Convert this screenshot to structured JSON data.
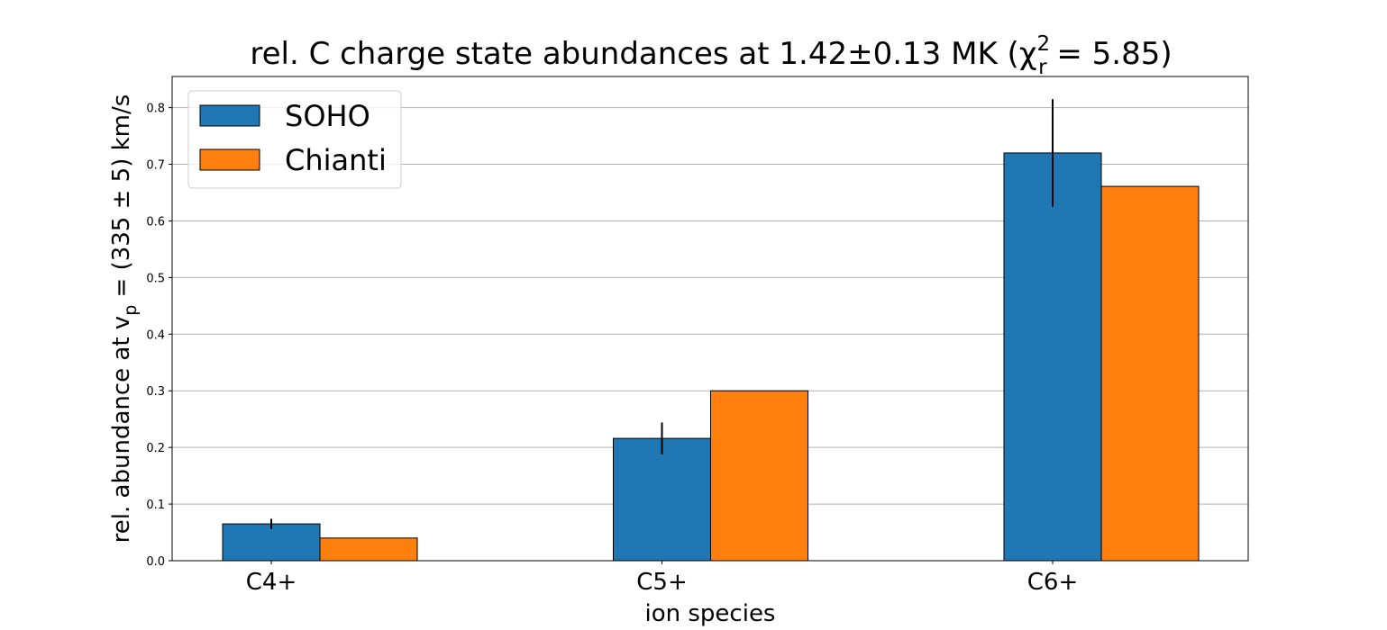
{
  "chart_data": {
    "type": "bar",
    "title": "rel. C charge state abundances at 1.42±0.13 MK (χ",
    "title_sup": "2",
    "title_sub": "r",
    "title_end": " = 5.85)",
    "xlabel": "ion species",
    "ylabel": "rel. abundance at v",
    "ylabel_sub": "p",
    "ylabel_end": " = (335 ± 5) km/s",
    "categories": [
      "C4+",
      "C5+",
      "C6+"
    ],
    "series": [
      {
        "name": "SOHO",
        "values": [
          0.065,
          0.216,
          0.72
        ],
        "errors": [
          0.009,
          0.028,
          0.095
        ],
        "color": "#1f77b4"
      },
      {
        "name": "Chianti",
        "values": [
          0.04,
          0.3,
          0.661
        ],
        "color": "#ff7f0e"
      }
    ],
    "ylim": [
      0,
      0.855
    ],
    "yticks": [
      "0.0",
      "0.1",
      "0.2",
      "0.3",
      "0.4",
      "0.5",
      "0.6",
      "0.7",
      "0.8"
    ],
    "grid": "horizontal",
    "legend": "upper-left"
  }
}
